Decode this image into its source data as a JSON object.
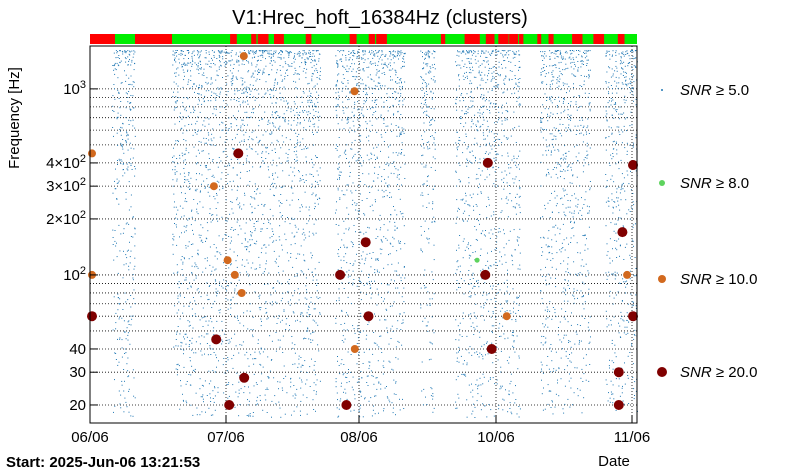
{
  "chart_data": {
    "type": "scatter",
    "title": "V1:Hrec_hoft_16384Hz (clusters)",
    "xlabel": "Date",
    "ylabel": "Frequency [Hz]",
    "yscale": "log",
    "ylim": [
      16,
      1700
    ],
    "x_ticks": [
      "06/06",
      "07/06",
      "08/06",
      "10/06",
      "11/06"
    ],
    "y_ticks": [
      {
        "value": 20,
        "label": "20"
      },
      {
        "value": 30,
        "label": "30"
      },
      {
        "value": 40,
        "label": "40"
      },
      {
        "value": 100,
        "label": "10^2"
      },
      {
        "value": 200,
        "label": "2×10^2"
      },
      {
        "value": 300,
        "label": "3×10^2"
      },
      {
        "value": 400,
        "label": "4×10^2"
      },
      {
        "value": 1000,
        "label": "10^3"
      }
    ],
    "start_label": "Start: 2025-Jun-06 13:21:53",
    "grid": true,
    "legend_position": "right",
    "series": [
      {
        "name": "SNR ≥ 5.0",
        "color": "#1f77b4"
      },
      {
        "name": "SNR ≥ 8.0",
        "color": "#5ed35e"
      },
      {
        "name": "SNR ≥ 10.0",
        "color": "#d2691e"
      },
      {
        "name": "SNR ≥ 20.0",
        "color": "#800000"
      }
    ],
    "points": [
      {
        "x": "07/06",
        "y": 1500,
        "snr": 10
      },
      {
        "x": "08/06",
        "y": 970,
        "snr": 10
      },
      {
        "x": "06/06",
        "y": 450,
        "snr": 10
      },
      {
        "x": "07/06",
        "y": 450,
        "snr": 20
      },
      {
        "x": "07/06",
        "y": 300,
        "snr": 10
      },
      {
        "x": "10/06",
        "y": 400,
        "snr": 20
      },
      {
        "x": "11/06",
        "y": 390,
        "snr": 20
      },
      {
        "x": "06/06",
        "y": 100,
        "snr": 10
      },
      {
        "x": "06/06",
        "y": 60,
        "snr": 20
      },
      {
        "x": "07/06",
        "y": 120,
        "snr": 10
      },
      {
        "x": "07/06",
        "y": 100,
        "snr": 10
      },
      {
        "x": "07/06",
        "y": 80,
        "snr": 10
      },
      {
        "x": "07/06",
        "y": 45,
        "snr": 20
      },
      {
        "x": "07/06",
        "y": 28,
        "snr": 20
      },
      {
        "x": "07/06",
        "y": 20,
        "snr": 20
      },
      {
        "x": "08/06",
        "y": 150,
        "snr": 20
      },
      {
        "x": "08/06",
        "y": 100,
        "snr": 20
      },
      {
        "x": "08/06",
        "y": 60,
        "snr": 20
      },
      {
        "x": "08/06",
        "y": 40,
        "snr": 10
      },
      {
        "x": "08/06",
        "y": 20,
        "snr": 20
      },
      {
        "x": "10/06",
        "y": 100,
        "snr": 20
      },
      {
        "x": "10/06",
        "y": 60,
        "snr": 10
      },
      {
        "x": "10/06",
        "y": 40,
        "snr": 20
      },
      {
        "x": "10/06",
        "y": 120,
        "snr": 8
      },
      {
        "x": "11/06",
        "y": 170,
        "snr": 20
      },
      {
        "x": "11/06",
        "y": 100,
        "snr": 10
      },
      {
        "x": "11/06",
        "y": 60,
        "snr": 20
      },
      {
        "x": "11/06",
        "y": 30,
        "snr": 20
      },
      {
        "x": "11/06",
        "y": 20,
        "snr": 20
      }
    ]
  }
}
